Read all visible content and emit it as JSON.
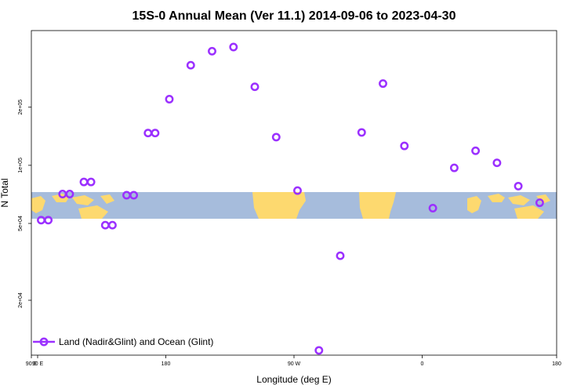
{
  "chart_data": {
    "type": "scatter",
    "title": "15S-0 Annual Mean (Ver 11.1)   2014-09-06 to 2023-04-30",
    "xlabel": "Longitude (deg E)",
    "ylabel": "N Total",
    "x_ticks": [
      "90 E",
      "180",
      "90 W",
      "0",
      "90 E",
      "180"
    ],
    "y_ticks": [
      "2e+04",
      "5e+04",
      "1e+05",
      "2e+05"
    ],
    "y_scale": "log",
    "legend": {
      "position": "bottom-left"
    },
    "colors": {
      "marker": "#9b30ff",
      "ocean": "#a6bcdc",
      "land": "#fdd96f"
    },
    "series": [
      {
        "name": "Land (Nadir&Glint) and Ocean (Glint)",
        "points": [
          [
            92.5,
            52000
          ],
          [
            107.5,
            71000
          ],
          [
            122.5,
            82000
          ],
          [
            137.5,
            49000
          ],
          [
            152.5,
            70000
          ],
          [
            167.5,
            147000
          ],
          [
            -177.5,
            220000
          ],
          [
            -162.5,
            330000
          ],
          [
            -147.5,
            390000
          ],
          [
            -132.5,
            410000
          ],
          [
            -117.5,
            255000
          ],
          [
            -102.5,
            140000
          ],
          [
            -87.5,
            74000
          ],
          [
            -72.5,
            11000
          ],
          [
            -57.5,
            34000
          ],
          [
            -42.5,
            148000
          ],
          [
            -27.5,
            265000
          ],
          [
            -12.5,
            126000
          ],
          [
            7.5,
            60000
          ],
          [
            22.5,
            97000
          ],
          [
            37.5,
            119000
          ],
          [
            52.5,
            103000
          ],
          [
            67.5,
            78000
          ],
          [
            82.5,
            64000
          ],
          [
            97.5,
            52000
          ],
          [
            112.5,
            71000
          ],
          [
            127.5,
            82000
          ],
          [
            142.5,
            49000
          ],
          [
            157.5,
            70000
          ],
          [
            172.5,
            147000
          ]
        ]
      }
    ]
  }
}
